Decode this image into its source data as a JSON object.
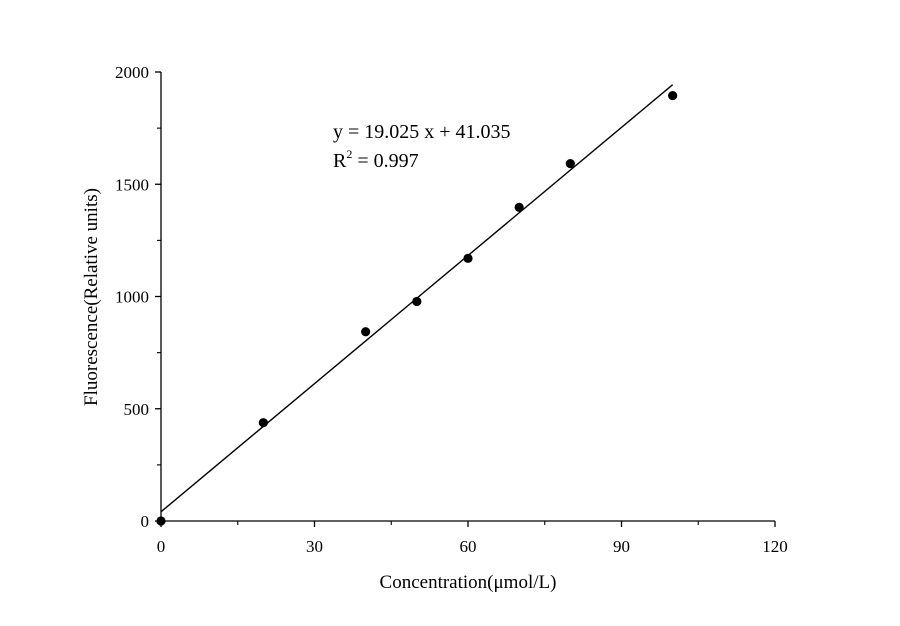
{
  "chart_data": {
    "type": "scatter",
    "title": "",
    "xlabel": "Concentration(μmol/L)",
    "ylabel": "Fluorescence(Relative units)",
    "xlim": [
      0,
      120
    ],
    "ylim": [
      0,
      2000
    ],
    "xticks": [
      0,
      30,
      60,
      90,
      120
    ],
    "yticks": [
      0,
      500,
      1000,
      1500,
      2000
    ],
    "grid": false,
    "legend": "none",
    "series": [
      {
        "points": [
          {
            "x": 0,
            "y": 0
          },
          {
            "x": 20,
            "y": 438
          },
          {
            "x": 40,
            "y": 843
          },
          {
            "x": 50,
            "y": 978
          },
          {
            "x": 60,
            "y": 1170
          },
          {
            "x": 70,
            "y": 1397
          },
          {
            "x": 80,
            "y": 1592
          },
          {
            "x": 100,
            "y": 1895
          }
        ],
        "marker": "filled-circle",
        "color": "#000000"
      }
    ],
    "fit_line": {
      "slope": 19.025,
      "intercept": 41.035,
      "x_range": [
        0,
        100
      ],
      "color": "#000000"
    },
    "annotations": {
      "equation": "y = 19.025 x + 41.035",
      "r2_prefix": "R",
      "r2_exponent": "2",
      "r2_suffix": " = 0.997"
    }
  }
}
